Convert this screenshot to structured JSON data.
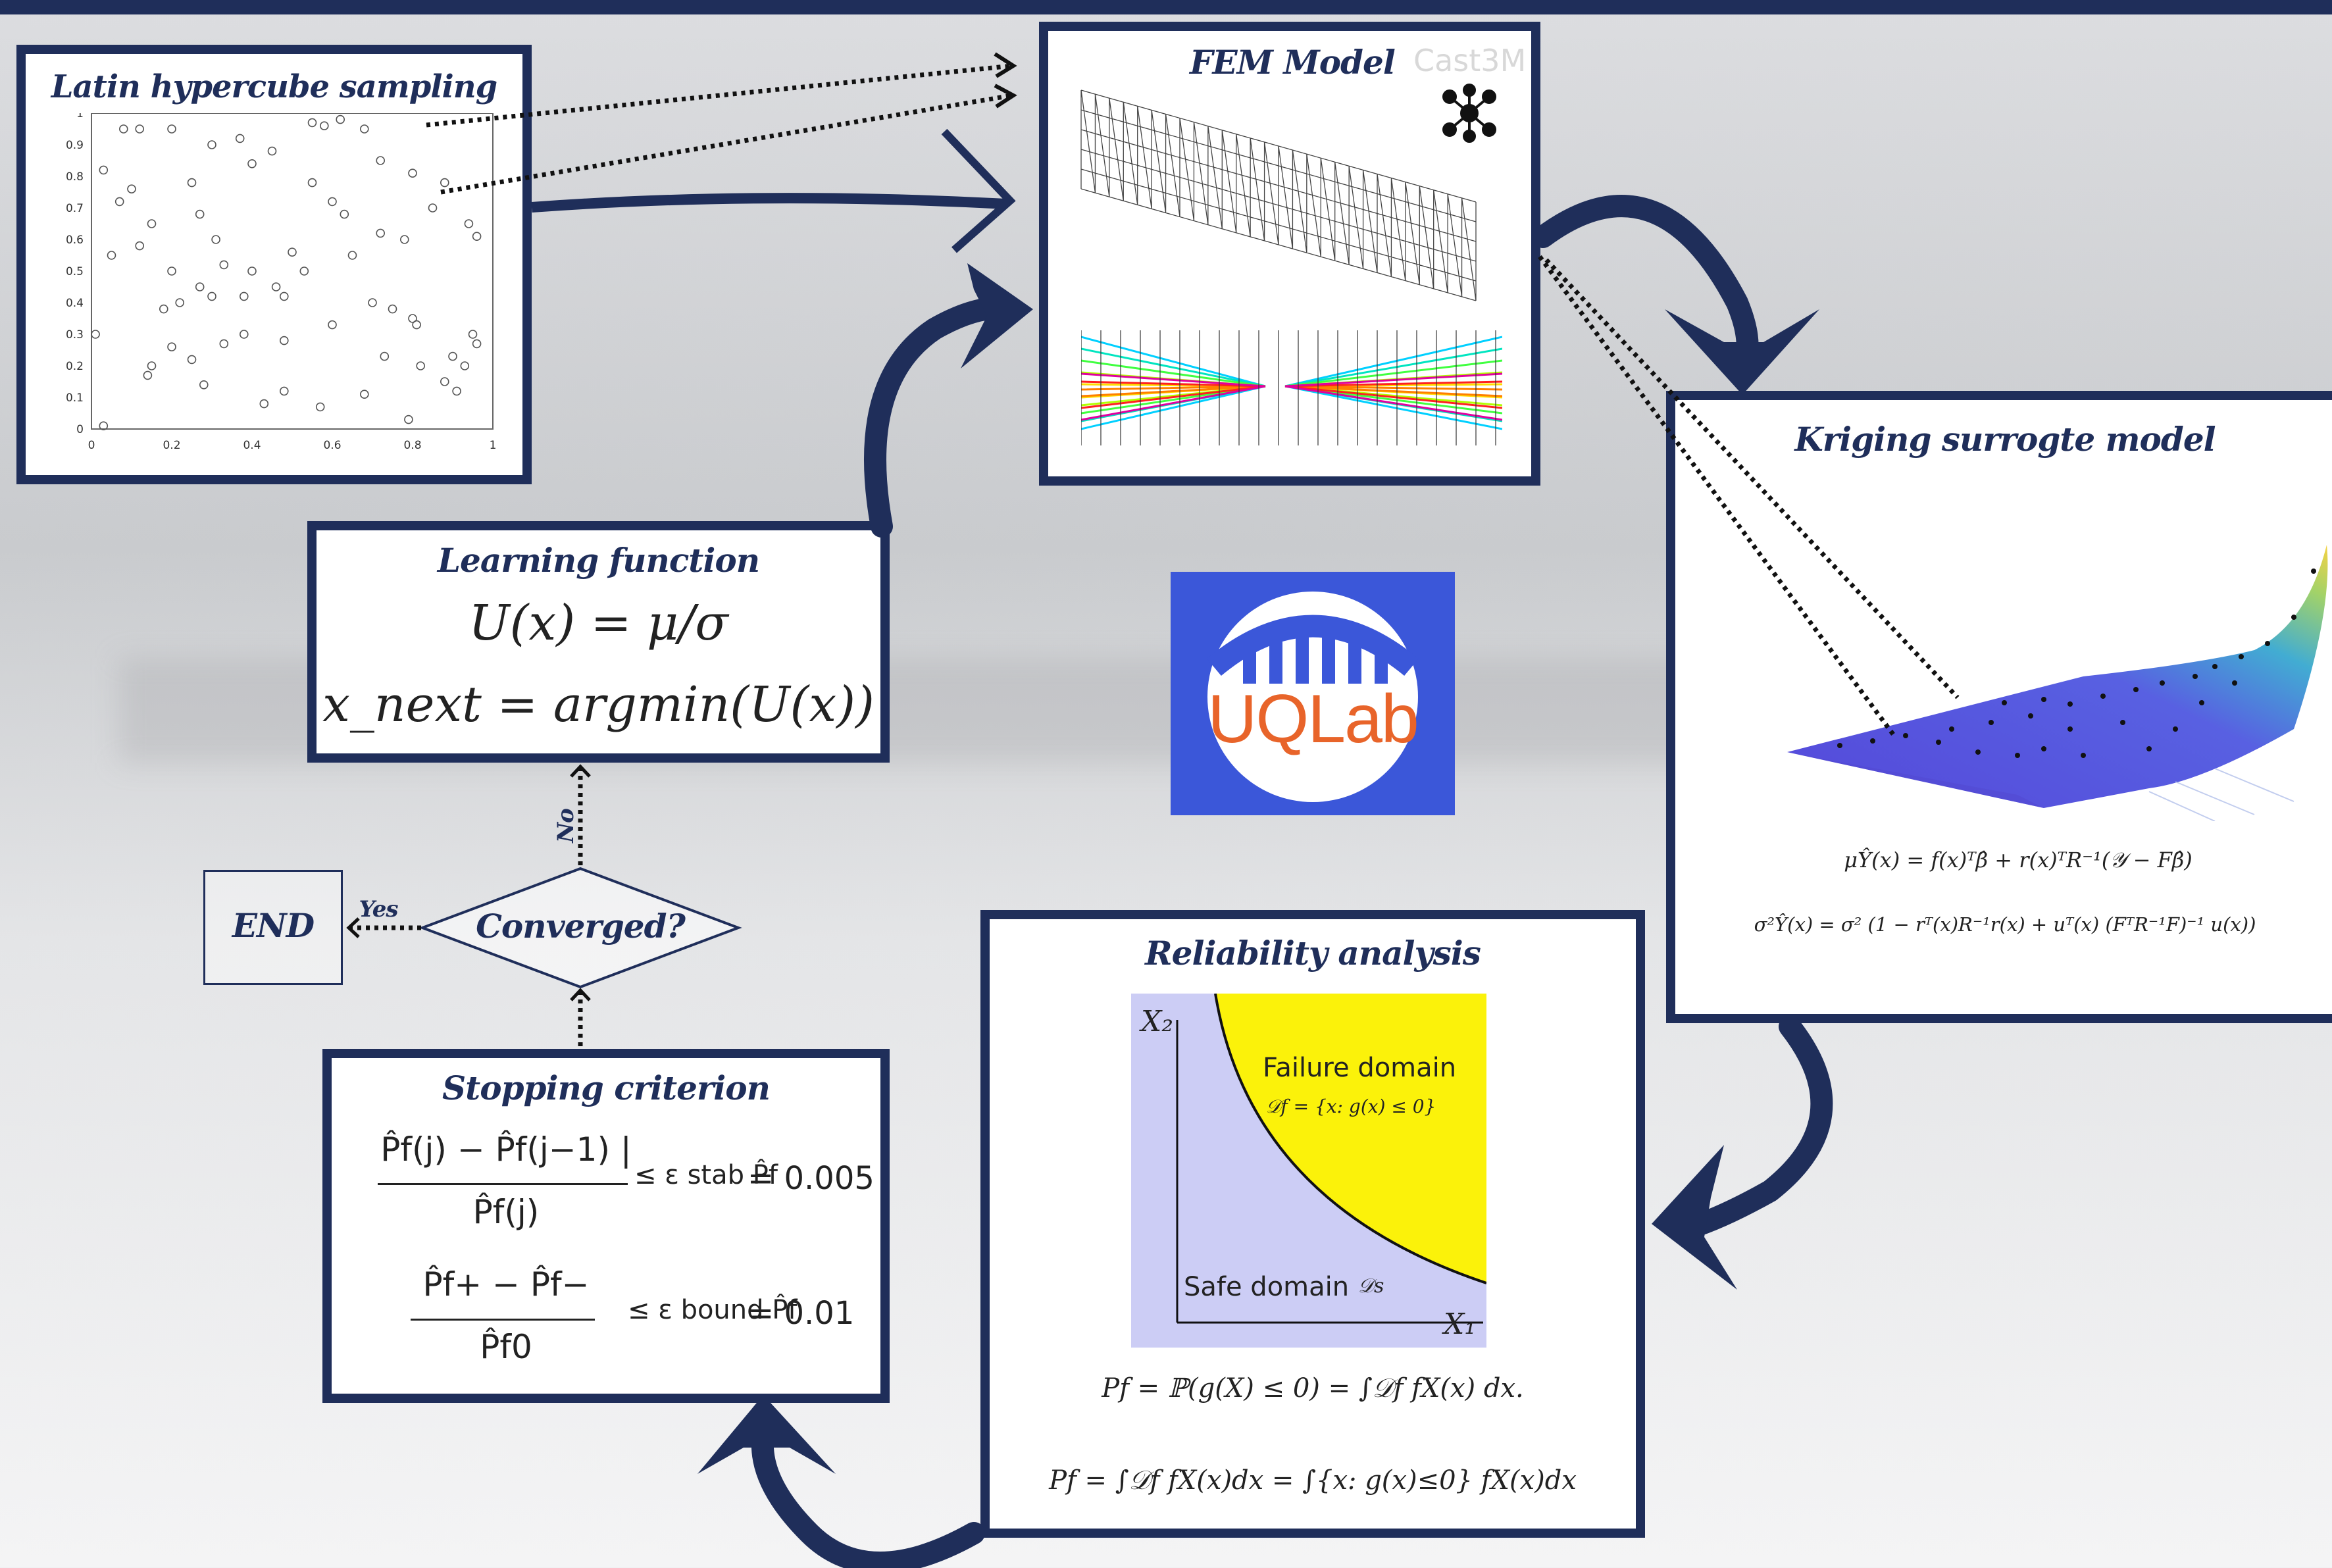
{
  "lhs": {
    "title": "Latin hypercube sampling",
    "y_ticks": [
      "0",
      "0.1",
      "0.2",
      "0.3",
      "0.4",
      "0.5",
      "0.6",
      "0.7",
      "0.8",
      "0.9",
      "1"
    ],
    "x_ticks": [
      "0",
      "0.2",
      "0.4",
      "0.6",
      "0.8",
      "1"
    ],
    "points": [
      [
        0.08,
        0.95
      ],
      [
        0.12,
        0.95
      ],
      [
        0.2,
        0.95
      ],
      [
        0.3,
        0.9
      ],
      [
        0.37,
        0.92
      ],
      [
        0.55,
        0.97
      ],
      [
        0.62,
        0.98
      ],
      [
        0.58,
        0.96
      ],
      [
        0.68,
        0.95
      ],
      [
        0.03,
        0.82
      ],
      [
        0.07,
        0.72
      ],
      [
        0.1,
        0.76
      ],
      [
        0.15,
        0.65
      ],
      [
        0.25,
        0.78
      ],
      [
        0.27,
        0.68
      ],
      [
        0.4,
        0.84
      ],
      [
        0.45,
        0.88
      ],
      [
        0.55,
        0.78
      ],
      [
        0.6,
        0.72
      ],
      [
        0.63,
        0.68
      ],
      [
        0.72,
        0.85
      ],
      [
        0.8,
        0.81
      ],
      [
        0.88,
        0.78
      ],
      [
        0.05,
        0.55
      ],
      [
        0.12,
        0.58
      ],
      [
        0.2,
        0.5
      ],
      [
        0.27,
        0.45
      ],
      [
        0.31,
        0.6
      ],
      [
        0.33,
        0.52
      ],
      [
        0.4,
        0.5
      ],
      [
        0.46,
        0.45
      ],
      [
        0.5,
        0.56
      ],
      [
        0.53,
        0.5
      ],
      [
        0.65,
        0.55
      ],
      [
        0.72,
        0.62
      ],
      [
        0.78,
        0.6
      ],
      [
        0.85,
        0.7
      ],
      [
        0.94,
        0.65
      ],
      [
        0.96,
        0.61
      ],
      [
        0.18,
        0.38
      ],
      [
        0.22,
        0.4
      ],
      [
        0.3,
        0.42
      ],
      [
        0.38,
        0.42
      ],
      [
        0.48,
        0.42
      ],
      [
        0.7,
        0.4
      ],
      [
        0.75,
        0.38
      ],
      [
        0.8,
        0.35
      ],
      [
        0.81,
        0.33
      ],
      [
        0.95,
        0.3
      ],
      [
        0.96,
        0.27
      ],
      [
        0.01,
        0.3
      ],
      [
        0.15,
        0.2
      ],
      [
        0.25,
        0.22
      ],
      [
        0.33,
        0.27
      ],
      [
        0.38,
        0.3
      ],
      [
        0.48,
        0.28
      ],
      [
        0.6,
        0.33
      ],
      [
        0.73,
        0.23
      ],
      [
        0.82,
        0.2
      ],
      [
        0.9,
        0.23
      ],
      [
        0.93,
        0.2
      ],
      [
        0.14,
        0.17
      ],
      [
        0.28,
        0.14
      ],
      [
        0.43,
        0.08
      ],
      [
        0.57,
        0.07
      ],
      [
        0.48,
        0.12
      ],
      [
        0.68,
        0.11
      ],
      [
        0.79,
        0.03
      ],
      [
        0.88,
        0.15
      ],
      [
        0.91,
        0.12
      ],
      [
        0.03,
        0.01
      ],
      [
        0.2,
        0.26
      ]
    ]
  },
  "fem": {
    "title": "FEM Model",
    "badge": "Cast3M"
  },
  "kriging": {
    "title": "Kriging surrogte model",
    "eq_mean": "μŶ(x) = f(x)ᵀβ̂ + r(x)ᵀR⁻¹(𝒴 − Fβ̂)",
    "eq_var": "σ²Ŷ(x) = σ² (1 − rᵀ(x)R⁻¹r(x) + uᵀ(x) (FᵀR⁻¹F)⁻¹ u(x))"
  },
  "logo": {
    "text": "UQLab"
  },
  "learning": {
    "title": "Learning function",
    "eq1": "U(x) = μ/σ",
    "eq2": "x_next = argmin(U(x))"
  },
  "converged": {
    "label": "Converged?",
    "no": "No",
    "yes": "Yes",
    "end": "END"
  },
  "stopping": {
    "title": "Stopping criterion",
    "c1_num": "P̂f(j) − P̂f(j−1) |",
    "c1_den": "P̂f(j)",
    "c1_eps": "≤ ε stab P̂f",
    "c1_val": "= 0.005",
    "c2_num": "P̂f+ − P̂f−",
    "c2_den": "P̂f0",
    "c2_eps": "≤ ε bound P̂f",
    "c2_val": "= 0.01"
  },
  "reliability": {
    "title": "Reliability analysis",
    "x1": "X₁",
    "x2": "X₂",
    "failure": "Failure domain",
    "failure_set": "𝒟f = {x: g(x) ≤ 0}",
    "safe": "Safe domain",
    "safe_sym": "𝒟s",
    "eq1": "Pf = ℙ(g(X) ≤ 0) = ∫𝒟f fX(x) dx.",
    "eq2": "Pf = ∫𝒟f fX(x)dx = ∫{x: g(x)≤0} fX(x)dx"
  },
  "colors": {
    "navy": "#1f2e5a",
    "uqlab_blue": "#3b57d9",
    "uqlab_orange": "#e8642a",
    "failure_yellow": "#fbf20a",
    "safe_lavender": "#cccdf5"
  }
}
